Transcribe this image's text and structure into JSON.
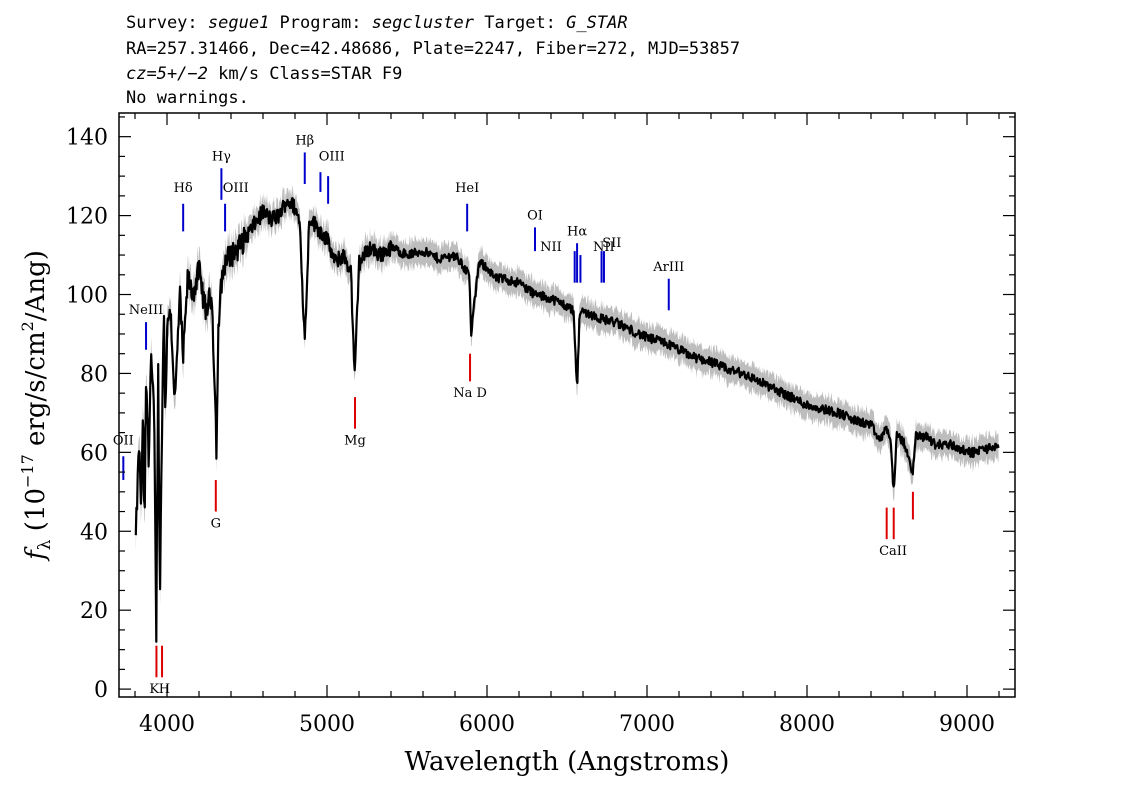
{
  "header": {
    "line1": {
      "survey_label": "Survey: ",
      "survey": "segue1",
      "program_label": " Program: ",
      "program": "segcluster",
      "target_label": " Target: ",
      "target": "G_STAR"
    },
    "line2": "RA=257.31466, Dec=42.48686, Plate=2247, Fiber=272, MJD=53857",
    "line3": {
      "cz": "cz=5+/−2",
      "rest": " km/s Class=STAR F9"
    },
    "line4": "No warnings."
  },
  "chart_data": {
    "type": "line",
    "xlabel": "Wavelength (Angstroms)",
    "ylabel": {
      "f": "f",
      "sub": "λ",
      "pre": " (10",
      "exp": "−17",
      "mid": " erg/s/cm",
      "exp2": "2",
      "post": "/Ang)"
    },
    "xlim": [
      3700,
      9300
    ],
    "ylim": [
      -2,
      146
    ],
    "x_ticks": [
      4000,
      5000,
      6000,
      7000,
      8000,
      9000
    ],
    "y_ticks": [
      0,
      20,
      40,
      60,
      80,
      100,
      120,
      140
    ],
    "colors": {
      "flux": "#000000",
      "error_band": "#bdbdbd",
      "emission": "#0000cc",
      "absorption": "#dd0000"
    },
    "series": [
      {
        "x": [
          3805,
          3825,
          3840,
          3850,
          3860,
          3870,
          3885,
          3900,
          3920,
          3933,
          3945,
          3955,
          3968,
          3980,
          3990,
          4000,
          4020,
          4050,
          4080,
          4101,
          4130,
          4160,
          4200,
          4240,
          4280,
          4300,
          4310,
          4320,
          4340,
          4360,
          4400,
          4450,
          4500,
          4550,
          4600,
          4650,
          4700,
          4750,
          4800,
          4830,
          4861,
          4890,
          4920,
          4960,
          5000,
          5050,
          5100,
          5150,
          5172,
          5200,
          5270,
          5330,
          5400,
          5500,
          5600,
          5700,
          5800,
          5890,
          5900,
          5950,
          6000,
          6050,
          6100,
          6200,
          6300,
          6400,
          6500,
          6540,
          6563,
          6580,
          6650,
          6700,
          6800,
          6900,
          7000,
          7100,
          7200,
          7300,
          7400,
          7500,
          7600,
          7700,
          7800,
          7900,
          8000,
          8100,
          8200,
          8300,
          8400,
          8450,
          8498,
          8520,
          8542,
          8560,
          8600,
          8662,
          8680,
          8750,
          8800,
          8850,
          8900,
          8950,
          9000,
          9050,
          9100,
          9150,
          9200
        ],
        "y": [
          38,
          62,
          45,
          72,
          40,
          80,
          58,
          85,
          68,
          14,
          84,
          22,
          64,
          96,
          70,
          90,
          98,
          72,
          100,
          84,
          104,
          100,
          106,
          96,
          100,
          75,
          60,
          90,
          103,
          108,
          110,
          112,
          115,
          118,
          121,
          119,
          120,
          124,
          122,
          118,
          88,
          120,
          118,
          116,
          114,
          108,
          110,
          106,
          78,
          108,
          112,
          110,
          112,
          110,
          111,
          109,
          110,
          105,
          90,
          108,
          107,
          104,
          104,
          103,
          100,
          99,
          97,
          96,
          76,
          96,
          95,
          94,
          93,
          91,
          89,
          88,
          86,
          84,
          83,
          81,
          80,
          78,
          76,
          74,
          72,
          71,
          70,
          68,
          67,
          63,
          66,
          64,
          50,
          64,
          63,
          55,
          64,
          64,
          62,
          62,
          62,
          61,
          60,
          60,
          61,
          61,
          62
        ]
      }
    ],
    "emission_lines": [
      {
        "label": "OII",
        "x": 3727,
        "y_bottom": 53,
        "y_top": 59,
        "lx": 3727,
        "ly": 62
      },
      {
        "label": "NeIII",
        "x": 3869,
        "y_bottom": 86,
        "y_top": 93,
        "lx": 3869,
        "ly": 95
      },
      {
        "label": "Hδ",
        "x": 4101,
        "y_bottom": 116,
        "y_top": 123,
        "lx": 4101,
        "ly": 126
      },
      {
        "label": "Hγ",
        "x": 4340,
        "y_bottom": 124,
        "y_top": 132,
        "lx": 4340,
        "ly": 134
      },
      {
        "label": "OIII",
        "x": 4363,
        "y_bottom": 116,
        "y_top": 123,
        "lx": 4430,
        "ly": 126
      },
      {
        "label": "Hβ",
        "x": 4861,
        "y_bottom": 128,
        "y_top": 136,
        "lx": 4861,
        "ly": 138
      },
      {
        "label": "OIII",
        "x": 4959,
        "y_bottom": 126,
        "y_top": 131,
        "lx": 5030,
        "ly": 134
      },
      {
        "label": "",
        "x": 5007,
        "y_bottom": 123,
        "y_top": 130,
        "lx": 5007,
        "ly": 130
      },
      {
        "label": "HeI",
        "x": 5876,
        "y_bottom": 116,
        "y_top": 123,
        "lx": 5876,
        "ly": 126
      },
      {
        "label": "OI",
        "x": 6300,
        "y_bottom": 111,
        "y_top": 117,
        "lx": 6300,
        "ly": 119
      },
      {
        "label": "NII",
        "x": 6548,
        "y_bottom": 103,
        "y_top": 111,
        "lx": 6400,
        "ly": 111
      },
      {
        "label": "Hα",
        "x": 6563,
        "y_bottom": 103,
        "y_top": 113,
        "lx": 6563,
        "ly": 115
      },
      {
        "label": "",
        "x": 6584,
        "y_bottom": 103,
        "y_top": 110,
        "lx": 6584,
        "ly": 110
      },
      {
        "label": "NII",
        "x": 6716,
        "y_bottom": 103,
        "y_top": 111,
        "lx": 6730,
        "ly": 111
      },
      {
        "label": "SII",
        "x": 6731,
        "y_bottom": 103,
        "y_top": 111,
        "lx": 6780,
        "ly": 112
      },
      {
        "label": "ArIII",
        "x": 7136,
        "y_bottom": 96,
        "y_top": 104,
        "lx": 7136,
        "ly": 106
      }
    ],
    "absorption_lines": [
      {
        "label": "K",
        "x": 3934,
        "y_bottom": 3,
        "y_top": 11,
        "lx": 3920,
        "ly": -1
      },
      {
        "label": "H",
        "x": 3969,
        "y_bottom": 3,
        "y_top": 11,
        "lx": 3984,
        "ly": -1
      },
      {
        "label": "G",
        "x": 4305,
        "y_bottom": 45,
        "y_top": 53,
        "lx": 4305,
        "ly": 41
      },
      {
        "label": "Mg",
        "x": 5175,
        "y_bottom": 66,
        "y_top": 74,
        "lx": 5175,
        "ly": 62
      },
      {
        "label": "Na D",
        "x": 5894,
        "y_bottom": 78,
        "y_top": 85,
        "lx": 5894,
        "ly": 74
      },
      {
        "label": "CaII",
        "x": 8498,
        "y_bottom": 38,
        "y_top": 46,
        "lx": 8538,
        "ly": 34
      },
      {
        "label": "",
        "x": 8542,
        "y_bottom": 38,
        "y_top": 46,
        "lx": 8542,
        "ly": 34
      },
      {
        "label": "",
        "x": 8662,
        "y_bottom": 43,
        "y_top": 50,
        "lx": 8662,
        "ly": 50
      }
    ]
  }
}
